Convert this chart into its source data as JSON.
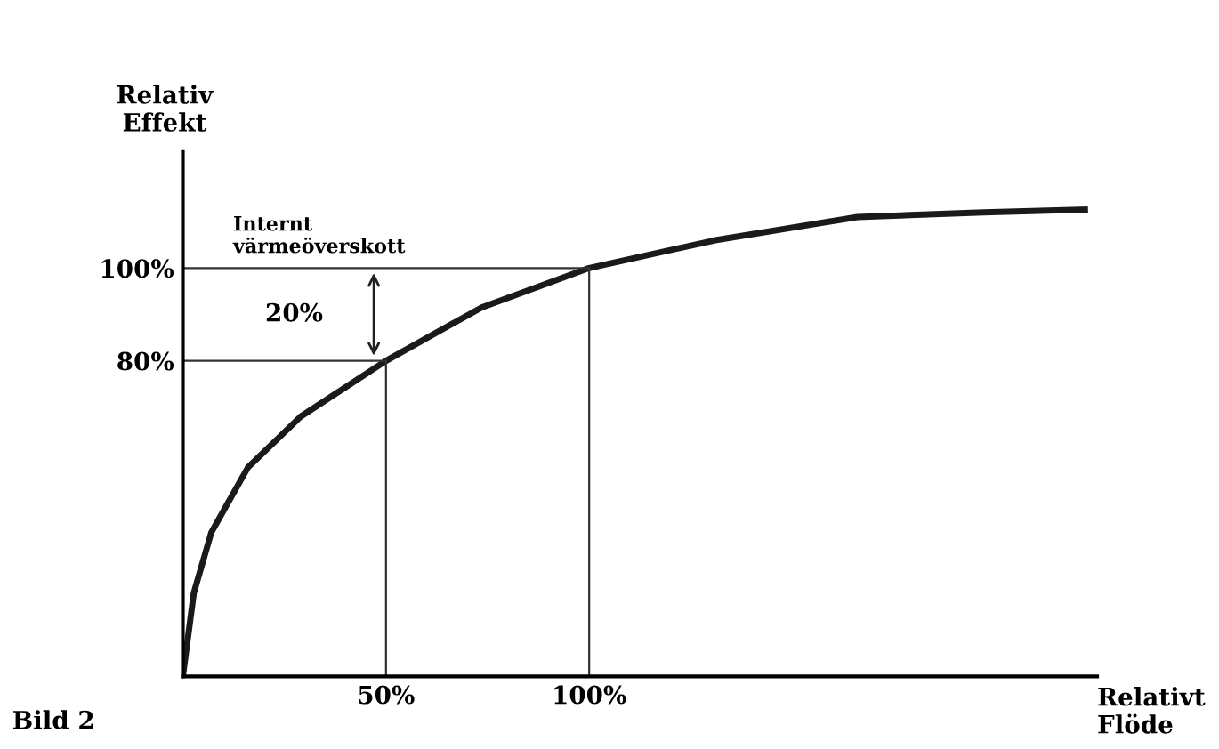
{
  "chart_data": {
    "type": "line",
    "xlabel": "Relativt\nFlöde",
    "ylabel": "Relativ\nEffekt",
    "x": [
      0,
      2.7,
      7,
      16,
      29,
      50,
      73.5,
      100,
      131,
      166,
      197,
      222
    ],
    "series": [
      {
        "color": "#1a1a1a",
        "values": [
          12,
          30,
          43,
          57,
          68,
          80,
          91.5,
          100,
          106,
          111,
          112,
          112.6
        ]
      }
    ],
    "xlim": [
      0,
      225
    ],
    "ylim": [
      12,
      125
    ],
    "xticks": [
      {
        "value": 50,
        "label": "50%"
      },
      {
        "value": 100,
        "label": "100%"
      }
    ],
    "yticks": [
      {
        "value": 80,
        "label": "80%"
      },
      {
        "value": 100,
        "label": "100%"
      }
    ],
    "ref_lines": [
      {
        "axis": "y",
        "value": 100,
        "color": "#333333"
      },
      {
        "axis": "y",
        "value": 80,
        "color": "#333333"
      },
      {
        "axis": "x",
        "value": 50,
        "color": "#333333"
      },
      {
        "axis": "x",
        "value": 100,
        "color": "#333333"
      }
    ],
    "annotations": [
      "Internt\nvärmeöverskott",
      "20%",
      "Bild 2"
    ],
    "grid": false,
    "legend": false,
    "marker": "none",
    "line_style": "solid"
  }
}
